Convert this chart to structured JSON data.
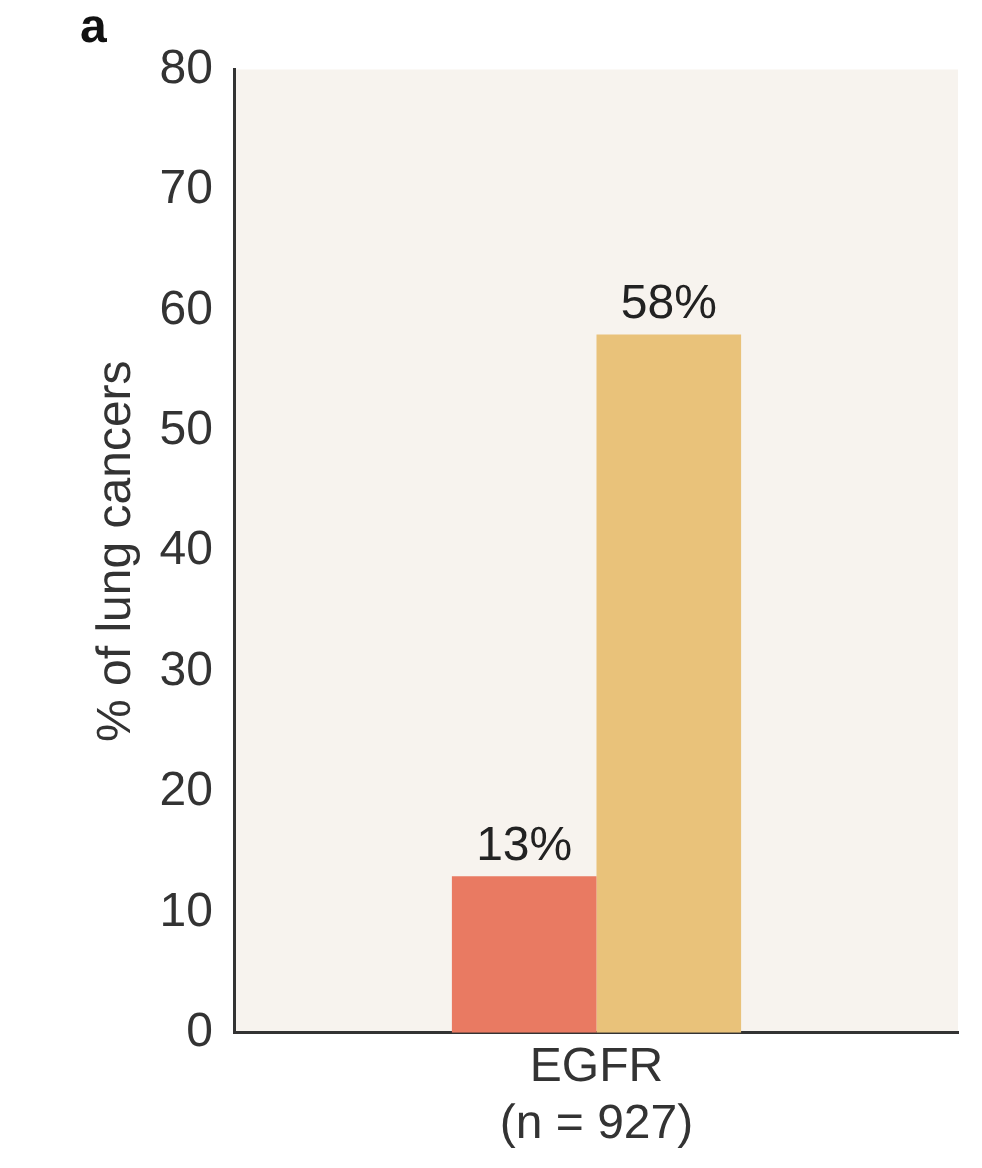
{
  "chart_data": {
    "type": "bar",
    "title": "a",
    "ylabel": "% of lung cancers",
    "categories": [
      "EGFR\n(n = 927)"
    ],
    "series": [
      {
        "color": "#e97a62",
        "values": [
          13
        ],
        "value_labels": [
          "13%"
        ]
      },
      {
        "color": "#e9c27a",
        "values": [
          58
        ],
        "value_labels": [
          "58%"
        ]
      }
    ],
    "ylim": [
      0,
      80
    ],
    "yticks": [
      0,
      10,
      20,
      30,
      40,
      50,
      60,
      70,
      80
    ],
    "grid": false,
    "legend": false
  }
}
